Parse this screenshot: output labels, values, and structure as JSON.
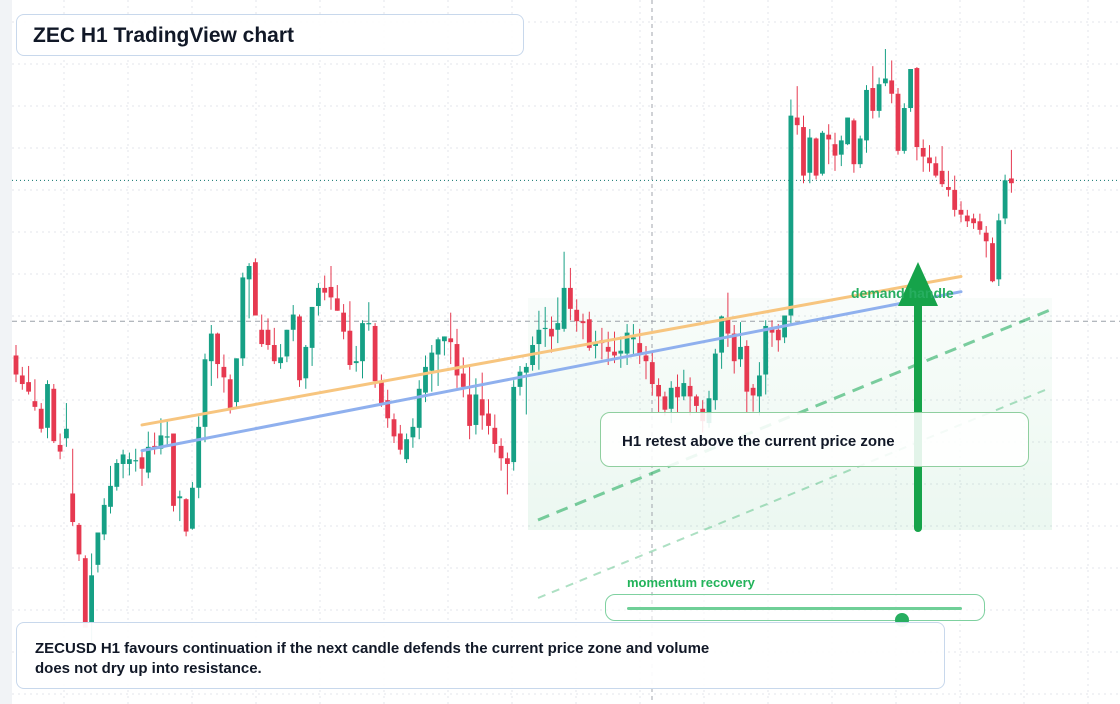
{
  "title": "ZEC H1 TradingView chart",
  "demand_label": "demand handle",
  "retest_label": "H1 retest above the current price zone",
  "momentum": {
    "label": "momentum recovery",
    "level": 0.82
  },
  "note": "ZECUSD H1 favours continuation if the next candle defends the current price zone and volume does not dry up into resistance.",
  "colors": {
    "up": "#16a085",
    "down": "#e63950",
    "accent": "#27ae60",
    "trendline_orange": "#f7c57f",
    "trendline_blue": "#8fb0ee"
  },
  "chart_data": {
    "type": "candlestick",
    "symbol": "ZECUSD",
    "timeframe": "H1",
    "title": "ZEC H1 TradingView chart",
    "grid": true,
    "y_axis_labels_visible": false,
    "candles": [
      {
        "o": 56.2,
        "h": 57.3,
        "l": 53.4,
        "c": 54.2
      },
      {
        "o": 54.1,
        "h": 55.0,
        "l": 52.6,
        "c": 53.2
      },
      {
        "o": 53.4,
        "h": 55.1,
        "l": 52.1,
        "c": 52.4
      },
      {
        "o": 51.4,
        "h": 53.7,
        "l": 50.4,
        "c": 50.8
      },
      {
        "o": 50.6,
        "h": 51.2,
        "l": 48.1,
        "c": 48.5
      },
      {
        "o": 48.6,
        "h": 53.6,
        "l": 47.5,
        "c": 53.2
      },
      {
        "o": 52.7,
        "h": 53.2,
        "l": 47.0,
        "c": 47.2
      },
      {
        "o": 46.8,
        "h": 48.0,
        "l": 45.3,
        "c": 46.1
      },
      {
        "o": 47.5,
        "h": 51.2,
        "l": 46.6,
        "c": 48.5
      },
      {
        "o": 41.7,
        "h": 46.4,
        "l": 38.3,
        "c": 38.7
      },
      {
        "o": 38.4,
        "h": 38.6,
        "l": 34.6,
        "c": 35.3
      },
      {
        "o": 34.9,
        "h": 35.2,
        "l": 27.6,
        "c": 27.6
      },
      {
        "o": 28.1,
        "h": 35.4,
        "l": 25.1,
        "c": 33.1
      },
      {
        "o": 34.2,
        "h": 37.6,
        "l": 33.4,
        "c": 37.6
      },
      {
        "o": 37.4,
        "h": 41.2,
        "l": 36.8,
        "c": 40.5
      },
      {
        "o": 40.3,
        "h": 44.6,
        "l": 39.6,
        "c": 42.5
      },
      {
        "o": 42.4,
        "h": 45.3,
        "l": 42.0,
        "c": 44.9
      },
      {
        "o": 44.8,
        "h": 46.3,
        "l": 43.3,
        "c": 45.8
      },
      {
        "o": 44.8,
        "h": 46.0,
        "l": 43.6,
        "c": 45.3
      },
      {
        "o": 45.2,
        "h": 46.4,
        "l": 44.0,
        "c": 45.2
      },
      {
        "o": 45.5,
        "h": 46.2,
        "l": 42.5,
        "c": 44.3
      },
      {
        "o": 43.9,
        "h": 48.2,
        "l": 43.3,
        "c": 46.6
      },
      {
        "o": 46.7,
        "h": 48.1,
        "l": 45.8,
        "c": 46.4
      },
      {
        "o": 46.4,
        "h": 49.6,
        "l": 45.8,
        "c": 47.8
      },
      {
        "o": 47.7,
        "h": 49.5,
        "l": 46.7,
        "c": 47.7
      },
      {
        "o": 48.0,
        "h": 48.0,
        "l": 39.8,
        "c": 40.4
      },
      {
        "o": 41.2,
        "h": 42.0,
        "l": 38.8,
        "c": 41.4
      },
      {
        "o": 41.1,
        "h": 41.2,
        "l": 37.2,
        "c": 37.7
      },
      {
        "o": 38.0,
        "h": 42.9,
        "l": 37.9,
        "c": 42.3
      },
      {
        "o": 42.3,
        "h": 49.8,
        "l": 41.2,
        "c": 48.7
      },
      {
        "o": 48.7,
        "h": 56.4,
        "l": 47.1,
        "c": 55.8
      },
      {
        "o": 55.6,
        "h": 59.4,
        "l": 53.0,
        "c": 58.5
      },
      {
        "o": 58.5,
        "h": 58.6,
        "l": 53.8,
        "c": 55.3
      },
      {
        "o": 55.0,
        "h": 56.3,
        "l": 52.3,
        "c": 53.9
      },
      {
        "o": 53.7,
        "h": 54.2,
        "l": 50.1,
        "c": 50.5
      },
      {
        "o": 51.3,
        "h": 55.9,
        "l": 50.7,
        "c": 55.9
      },
      {
        "o": 55.9,
        "h": 64.9,
        "l": 55.1,
        "c": 64.4
      },
      {
        "o": 64.2,
        "h": 65.9,
        "l": 60.1,
        "c": 65.6
      },
      {
        "o": 66.0,
        "h": 66.4,
        "l": 60.4,
        "c": 60.4
      },
      {
        "o": 58.9,
        "h": 60.5,
        "l": 57.1,
        "c": 57.4
      },
      {
        "o": 58.9,
        "h": 60.1,
        "l": 56.8,
        "c": 57.3
      },
      {
        "o": 57.3,
        "h": 59.1,
        "l": 55.3,
        "c": 55.6
      },
      {
        "o": 55.4,
        "h": 57.4,
        "l": 54.8,
        "c": 56.0
      },
      {
        "o": 56.1,
        "h": 58.9,
        "l": 55.5,
        "c": 58.9
      },
      {
        "o": 58.9,
        "h": 61.5,
        "l": 57.7,
        "c": 60.5
      },
      {
        "o": 60.3,
        "h": 60.5,
        "l": 52.9,
        "c": 53.6
      },
      {
        "o": 53.8,
        "h": 57.3,
        "l": 52.7,
        "c": 57.1
      },
      {
        "o": 57.0,
        "h": 61.3,
        "l": 55.1,
        "c": 61.3
      },
      {
        "o": 61.4,
        "h": 63.8,
        "l": 60.4,
        "c": 63.3
      },
      {
        "o": 63.3,
        "h": 64.6,
        "l": 62.0,
        "c": 62.8
      },
      {
        "o": 63.4,
        "h": 65.6,
        "l": 61.0,
        "c": 62.3
      },
      {
        "o": 62.2,
        "h": 63.6,
        "l": 60.9,
        "c": 60.9
      },
      {
        "o": 60.7,
        "h": 61.6,
        "l": 57.9,
        "c": 58.7
      },
      {
        "o": 58.8,
        "h": 61.9,
        "l": 54.7,
        "c": 55.2
      },
      {
        "o": 55.4,
        "h": 57.2,
        "l": 54.5,
        "c": 55.6
      },
      {
        "o": 55.6,
        "h": 59.9,
        "l": 53.8,
        "c": 59.6
      },
      {
        "o": 59.6,
        "h": 61.8,
        "l": 58.8,
        "c": 59.6
      },
      {
        "o": 59.3,
        "h": 59.6,
        "l": 52.8,
        "c": 53.5
      },
      {
        "o": 53.5,
        "h": 54.2,
        "l": 50.8,
        "c": 51.1
      },
      {
        "o": 51.5,
        "h": 52.6,
        "l": 48.6,
        "c": 49.6
      },
      {
        "o": 49.5,
        "h": 50.1,
        "l": 47.0,
        "c": 47.7
      },
      {
        "o": 48.0,
        "h": 48.9,
        "l": 45.8,
        "c": 46.3
      },
      {
        "o": 45.3,
        "h": 48.0,
        "l": 44.9,
        "c": 47.4
      },
      {
        "o": 47.6,
        "h": 49.6,
        "l": 46.5,
        "c": 48.7
      },
      {
        "o": 48.6,
        "h": 53.6,
        "l": 47.4,
        "c": 52.7
      },
      {
        "o": 52.3,
        "h": 56.2,
        "l": 51.3,
        "c": 55.0
      },
      {
        "o": 54.6,
        "h": 57.3,
        "l": 52.4,
        "c": 56.5
      },
      {
        "o": 56.3,
        "h": 58.1,
        "l": 53.0,
        "c": 57.9
      },
      {
        "o": 57.7,
        "h": 58.2,
        "l": 56.2,
        "c": 58.2
      },
      {
        "o": 58.0,
        "h": 60.7,
        "l": 55.3,
        "c": 57.6
      },
      {
        "o": 57.4,
        "h": 59.0,
        "l": 52.8,
        "c": 54.1
      },
      {
        "o": 54.3,
        "h": 56.0,
        "l": 51.8,
        "c": 52.9
      },
      {
        "o": 52.1,
        "h": 55.2,
        "l": 47.4,
        "c": 48.8
      },
      {
        "o": 48.9,
        "h": 53.8,
        "l": 47.9,
        "c": 52.1
      },
      {
        "o": 51.6,
        "h": 54.4,
        "l": 48.4,
        "c": 49.9
      },
      {
        "o": 50.1,
        "h": 51.6,
        "l": 47.9,
        "c": 48.8
      },
      {
        "o": 48.6,
        "h": 50.0,
        "l": 46.0,
        "c": 46.9
      },
      {
        "o": 46.7,
        "h": 47.5,
        "l": 44.1,
        "c": 45.4
      },
      {
        "o": 45.4,
        "h": 46.0,
        "l": 41.6,
        "c": 44.8
      },
      {
        "o": 45.0,
        "h": 53.6,
        "l": 44.1,
        "c": 52.9
      },
      {
        "o": 52.9,
        "h": 55.1,
        "l": 52.0,
        "c": 54.5
      },
      {
        "o": 54.4,
        "h": 55.4,
        "l": 50.0,
        "c": 55.0
      },
      {
        "o": 55.2,
        "h": 58.2,
        "l": 54.6,
        "c": 57.3
      },
      {
        "o": 57.4,
        "h": 60.9,
        "l": 54.7,
        "c": 58.9
      },
      {
        "o": 59.1,
        "h": 61.3,
        "l": 57.1,
        "c": 59.1
      },
      {
        "o": 59.0,
        "h": 60.3,
        "l": 56.5,
        "c": 58.2
      },
      {
        "o": 58.9,
        "h": 62.3,
        "l": 57.5,
        "c": 59.6
      },
      {
        "o": 59.0,
        "h": 67.1,
        "l": 58.7,
        "c": 63.3
      },
      {
        "o": 63.3,
        "h": 65.4,
        "l": 59.9,
        "c": 61.1
      },
      {
        "o": 61.0,
        "h": 62.1,
        "l": 58.7,
        "c": 59.8
      },
      {
        "o": 59.8,
        "h": 60.6,
        "l": 57.9,
        "c": 59.6
      },
      {
        "o": 60.0,
        "h": 60.8,
        "l": 56.7,
        "c": 57.0
      },
      {
        "o": 57.2,
        "h": 58.8,
        "l": 55.9,
        "c": 57.6
      },
      {
        "o": 57.8,
        "h": 59.1,
        "l": 55.8,
        "c": 57.5
      },
      {
        "o": 57.1,
        "h": 58.7,
        "l": 55.2,
        "c": 56.6
      },
      {
        "o": 56.6,
        "h": 58.7,
        "l": 55.4,
        "c": 56.2
      },
      {
        "o": 56.4,
        "h": 58.2,
        "l": 54.9,
        "c": 56.7
      },
      {
        "o": 56.4,
        "h": 59.5,
        "l": 55.2,
        "c": 58.6
      },
      {
        "o": 57.9,
        "h": 59.5,
        "l": 56.3,
        "c": 58.1
      },
      {
        "o": 57.5,
        "h": 59.0,
        "l": 55.3,
        "c": 56.4
      },
      {
        "o": 56.2,
        "h": 57.2,
        "l": 53.7,
        "c": 55.6
      },
      {
        "o": 55.5,
        "h": 56.6,
        "l": 52.0,
        "c": 53.2
      },
      {
        "o": 53.1,
        "h": 53.8,
        "l": 50.2,
        "c": 51.9
      },
      {
        "o": 51.9,
        "h": 52.4,
        "l": 49.9,
        "c": 50.5
      },
      {
        "o": 50.6,
        "h": 53.5,
        "l": 49.1,
        "c": 52.8
      },
      {
        "o": 52.9,
        "h": 54.2,
        "l": 50.2,
        "c": 51.8
      },
      {
        "o": 51.9,
        "h": 54.7,
        "l": 51.5,
        "c": 53.3
      },
      {
        "o": 53.0,
        "h": 53.9,
        "l": 49.9,
        "c": 51.9
      },
      {
        "o": 51.9,
        "h": 52.1,
        "l": 50.2,
        "c": 50.9
      },
      {
        "o": 50.6,
        "h": 51.5,
        "l": 48.1,
        "c": 49.3
      },
      {
        "o": 49.1,
        "h": 52.5,
        "l": 48.6,
        "c": 51.7
      },
      {
        "o": 51.5,
        "h": 56.9,
        "l": 50.5,
        "c": 56.4
      },
      {
        "o": 56.5,
        "h": 60.4,
        "l": 54.8,
        "c": 60.3
      },
      {
        "o": 60.1,
        "h": 62.8,
        "l": 57.1,
        "c": 58.5
      },
      {
        "o": 58.5,
        "h": 59.4,
        "l": 54.3,
        "c": 55.6
      },
      {
        "o": 55.8,
        "h": 59.7,
        "l": 55.0,
        "c": 57.1
      },
      {
        "o": 57.2,
        "h": 57.8,
        "l": 50.2,
        "c": 52.4
      },
      {
        "o": 52.8,
        "h": 53.2,
        "l": 50.3,
        "c": 52.0
      },
      {
        "o": 51.9,
        "h": 55.5,
        "l": 49.9,
        "c": 54.1
      },
      {
        "o": 54.2,
        "h": 59.9,
        "l": 52.1,
        "c": 59.3
      },
      {
        "o": 59.1,
        "h": 59.9,
        "l": 57.1,
        "c": 58.6
      },
      {
        "o": 58.9,
        "h": 59.5,
        "l": 56.6,
        "c": 57.8
      },
      {
        "o": 58.1,
        "h": 60.4,
        "l": 57.5,
        "c": 60.4
      },
      {
        "o": 60.4,
        "h": 83.1,
        "l": 59.5,
        "c": 81.4
      },
      {
        "o": 81.2,
        "h": 84.5,
        "l": 79.4,
        "c": 80.4
      },
      {
        "o": 80.2,
        "h": 81.4,
        "l": 74.3,
        "c": 75.1
      },
      {
        "o": 75.4,
        "h": 80.0,
        "l": 74.3,
        "c": 79.1
      },
      {
        "o": 79.0,
        "h": 79.1,
        "l": 74.7,
        "c": 75.1
      },
      {
        "o": 75.3,
        "h": 79.8,
        "l": 75.1,
        "c": 79.6
      },
      {
        "o": 79.4,
        "h": 80.5,
        "l": 76.3,
        "c": 78.9
      },
      {
        "o": 78.4,
        "h": 79.6,
        "l": 75.6,
        "c": 77.2
      },
      {
        "o": 77.3,
        "h": 79.3,
        "l": 76.1,
        "c": 78.8
      },
      {
        "o": 78.4,
        "h": 81.2,
        "l": 78.3,
        "c": 81.2
      },
      {
        "o": 80.9,
        "h": 81.1,
        "l": 75.4,
        "c": 76.3
      },
      {
        "o": 76.3,
        "h": 79.3,
        "l": 75.9,
        "c": 79.0
      },
      {
        "o": 78.8,
        "h": 84.6,
        "l": 77.5,
        "c": 84.1
      },
      {
        "o": 84.3,
        "h": 86.6,
        "l": 81.1,
        "c": 81.9
      },
      {
        "o": 81.9,
        "h": 85.4,
        "l": 81.2,
        "c": 84.7
      },
      {
        "o": 84.8,
        "h": 88.4,
        "l": 84.5,
        "c": 85.3
      },
      {
        "o": 85.1,
        "h": 87.2,
        "l": 82.7,
        "c": 83.7
      },
      {
        "o": 83.7,
        "h": 84.3,
        "l": 77.3,
        "c": 77.7
      },
      {
        "o": 77.7,
        "h": 82.7,
        "l": 77.4,
        "c": 82.2
      },
      {
        "o": 82.2,
        "h": 86.3,
        "l": 81.8,
        "c": 86.3
      },
      {
        "o": 86.4,
        "h": 86.5,
        "l": 76.7,
        "c": 78.1
      },
      {
        "o": 78.0,
        "h": 78.9,
        "l": 75.5,
        "c": 77.1
      },
      {
        "o": 77.0,
        "h": 78.3,
        "l": 75.5,
        "c": 76.4
      },
      {
        "o": 76.4,
        "h": 77.1,
        "l": 74.9,
        "c": 75.1
      },
      {
        "o": 75.6,
        "h": 78.2,
        "l": 73.9,
        "c": 74.2
      },
      {
        "o": 73.9,
        "h": 75.6,
        "l": 72.9,
        "c": 73.6
      },
      {
        "o": 73.6,
        "h": 75.1,
        "l": 70.8,
        "c": 71.5
      },
      {
        "o": 71.5,
        "h": 72.4,
        "l": 70.2,
        "c": 71.0
      },
      {
        "o": 70.9,
        "h": 71.5,
        "l": 69.7,
        "c": 70.3
      },
      {
        "o": 70.6,
        "h": 71.1,
        "l": 69.5,
        "c": 70.1
      },
      {
        "o": 70.3,
        "h": 71.1,
        "l": 68.9,
        "c": 69.4
      },
      {
        "o": 69.1,
        "h": 69.8,
        "l": 66.5,
        "c": 68.2
      },
      {
        "o": 68.0,
        "h": 68.6,
        "l": 63.9,
        "c": 64.0
      },
      {
        "o": 64.2,
        "h": 71.1,
        "l": 63.5,
        "c": 70.4
      },
      {
        "o": 70.6,
        "h": 75.2,
        "l": 70.0,
        "c": 74.6
      },
      {
        "o": 74.8,
        "h": 77.8,
        "l": 73.3,
        "c": 74.3
      }
    ],
    "y_range": [
      20.0,
      92.5
    ],
    "reference_lines": [
      {
        "y": 74.6,
        "style": "dotted"
      },
      {
        "y": 59.8,
        "style": "dashed"
      }
    ],
    "trendlines": [
      {
        "name": "",
        "start_index": 20,
        "end_index": 150,
        "y_start": 48.9,
        "y_end": 64.5
      },
      {
        "name": "",
        "start_index": 20,
        "end_index": 150,
        "y_start": 46.2,
        "y_end": 62.9
      }
    ]
  }
}
